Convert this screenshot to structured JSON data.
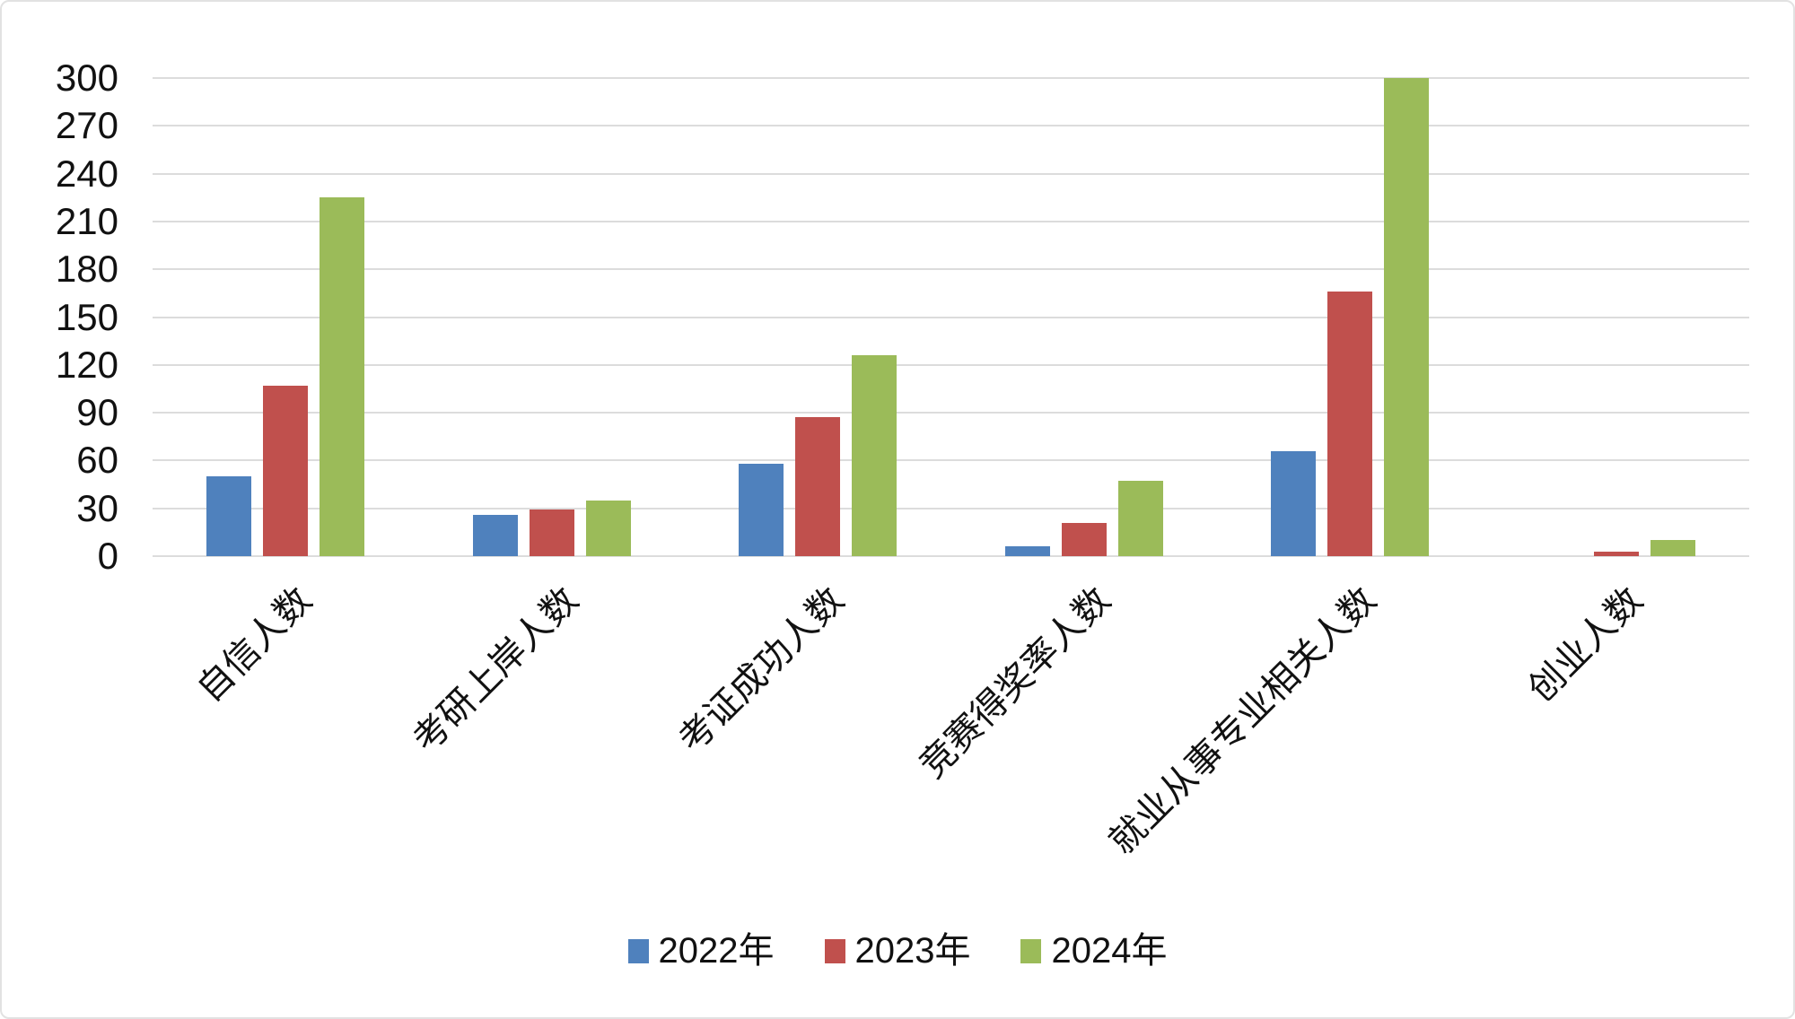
{
  "chart_data": {
    "type": "bar",
    "title": "",
    "xlabel": "",
    "ylabel": "",
    "categories": [
      "自信人数",
      "考研上岸人数",
      "考证成功人数",
      "竞赛得奖率人数",
      "就业从事专业相关人数",
      "创业人数"
    ],
    "series": [
      {
        "name": "2022年",
        "color": "#4F81BD",
        "values": [
          50,
          26,
          58,
          6,
          66,
          0
        ]
      },
      {
        "name": "2023年",
        "color": "#C0504D",
        "values": [
          107,
          29,
          87,
          21,
          166,
          3
        ]
      },
      {
        "name": "2024年",
        "color": "#9BBB59",
        "values": [
          225,
          35,
          126,
          47,
          300,
          10
        ]
      }
    ],
    "ylim": [
      0,
      300
    ],
    "ytick_step": 30,
    "yticks": [
      0,
      30,
      60,
      90,
      120,
      150,
      180,
      210,
      240,
      270,
      300
    ],
    "grid": true,
    "gridline_color": "#dcdcdc",
    "legend_position": "bottom",
    "background": "#ffffff"
  }
}
